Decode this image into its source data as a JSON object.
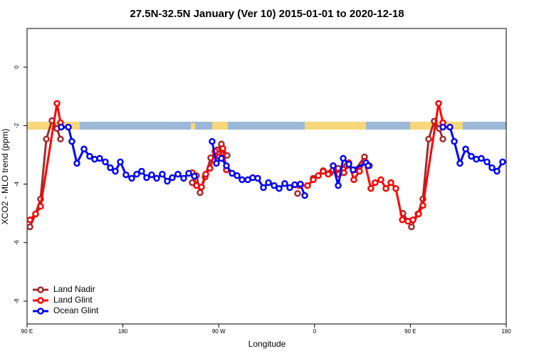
{
  "chart_data": {
    "type": "line",
    "title": "27.5N-32.5N January (Ver 10)   2015-01-01 to 2020-12-18",
    "x_label": "Longitude",
    "y_label": "XCO2 - MLO trend (ppm)",
    "xlim": [
      90,
      540
    ],
    "ylim": [
      -8.78,
      1.32
    ],
    "xticks": [
      {
        "value": 90,
        "label": "90 E"
      },
      180,
      {
        "value": 270,
        "label": "90 W"
      },
      {
        "value": 360,
        "label": "0"
      },
      {
        "value": 450,
        "label": "90 E"
      },
      {
        "value": 540,
        "label": "180"
      }
    ],
    "yticks": [
      0,
      -2,
      -4,
      -6,
      -8
    ],
    "legend": "bottom-left",
    "series": [
      {
        "name": "Land Nadir",
        "color": "#a52a2a",
        "x": [
          92.7,
          98.0,
          102.7,
          108.1,
          113.4,
          118.1,
          121.4,
          null,
          245.1,
          249.1,
          252.5,
          257.2,
          262.5,
          268.5,
          272.5,
          273.9,
          277.9,
          null,
          344.1,
          null,
          358.8,
          368.1,
          374.8,
          382.2,
          390.2,
          398.2,
          406.9,
          411.6,
          null,
          443.0,
          451.0,
          457.1,
          461.7,
          467.1,
          472.4,
          477.1,
          480.5
        ],
        "values": [
          -5.46,
          -5.02,
          -4.51,
          -2.46,
          -1.83,
          -2.1,
          -2.46,
          null,
          -3.95,
          -3.71,
          -4.29,
          -3.76,
          -3.1,
          -2.83,
          -2.63,
          -2.93,
          -3.02,
          null,
          -4.32,
          null,
          -3.8,
          -3.54,
          -3.61,
          -3.46,
          -3.37,
          -3.51,
          -3.07,
          -3.37,
          null,
          -5.0,
          -5.46,
          -5.02,
          -4.51,
          -2.46,
          -1.85,
          -2.1,
          -2.46
        ]
      },
      {
        "name": "Land Glint",
        "color": "#ff0000",
        "x": [
          92.7,
          98.0,
          102.7,
          118.1,
          121.4,
          null,
          245.1,
          249.1,
          253.8,
          257.8,
          261.8,
          266.5,
          270.5,
          273.9,
          277.2,
          null,
          345.4,
          353.4,
          358.8,
          363.5,
          368.1,
          372.8,
          377.5,
          382.8,
          387.5,
          392.2,
          396.9,
          402.2,
          406.9,
          412.9,
          416.9,
          422.3,
          427.0,
          431.7,
          436.3,
          442.4,
          447.7,
          452.4,
          457.7,
          461.7,
          476.5,
          480.5
        ],
        "values": [
          -5.22,
          -5.02,
          -4.76,
          -1.24,
          -1.9,
          null,
          -3.61,
          -4.05,
          -4.1,
          -3.66,
          -3.46,
          -2.88,
          -3.07,
          -2.78,
          -3.51,
          null,
          -4.05,
          -4.05,
          -3.85,
          -3.71,
          -3.56,
          -3.66,
          -3.51,
          -3.66,
          -3.61,
          -3.27,
          -3.85,
          -3.56,
          -3.22,
          -4.15,
          -3.95,
          -3.85,
          -4.15,
          -3.95,
          -4.15,
          -5.22,
          -5.27,
          -5.22,
          -5.02,
          -4.73,
          -1.24,
          -1.9
        ]
      },
      {
        "name": "Ocean Glint",
        "color": "#0000ff",
        "x": [
          122.1,
          128.8,
          132.1,
          136.8,
          143.5,
          148.8,
          153.5,
          158.2,
          163.5,
          168.2,
          172.9,
          177.6,
          182.9,
          188.3,
          193.0,
          197.6,
          202.3,
          207.0,
          211.7,
          217.0,
          221.7,
          226.4,
          231.7,
          237.1,
          241.8,
          247.1,
          null,
          263.8,
          267.8,
          272.5,
          277.2,
          282.6,
          287.2,
          291.9,
          297.3,
          301.9,
          306.6,
          312.0,
          316.7,
          322.0,
          326.7,
          332.0,
          336.7,
          341.4,
          346.7,
          350.8,
          null,
          377.5,
          382.2,
          386.9,
          392.2,
          396.2,
          408.3,
          410.3,
          null,
          480.5,
          487.1,
          491.2,
          496.5,
          501.9,
          507.2,
          511.9,
          516.6,
          521.9,
          526.6,
          531.3,
          536.6
        ],
        "values": [
          -2.05,
          -2.05,
          -2.54,
          -3.29,
          -2.8,
          -3.05,
          -3.15,
          -3.12,
          -3.24,
          -3.44,
          -3.56,
          -3.24,
          -3.68,
          -3.8,
          -3.66,
          -3.56,
          -3.78,
          -3.68,
          -3.8,
          -3.66,
          -3.9,
          -3.78,
          -3.66,
          -3.8,
          -3.63,
          -3.73,
          null,
          -2.54,
          -3.29,
          -3.12,
          -3.37,
          -3.63,
          -3.71,
          -3.85,
          -3.85,
          -3.78,
          -3.8,
          -4.12,
          -3.95,
          -4.05,
          -4.15,
          -3.98,
          -4.12,
          -4.02,
          -4.0,
          -4.39,
          null,
          -3.37,
          -4.05,
          -3.12,
          -3.32,
          -3.51,
          -3.27,
          -3.37,
          null,
          -2.05,
          -2.05,
          -2.54,
          -3.29,
          -2.8,
          -3.05,
          -3.15,
          -3.12,
          -3.24,
          -3.44,
          -3.56,
          -3.24
        ]
      }
    ]
  }
}
